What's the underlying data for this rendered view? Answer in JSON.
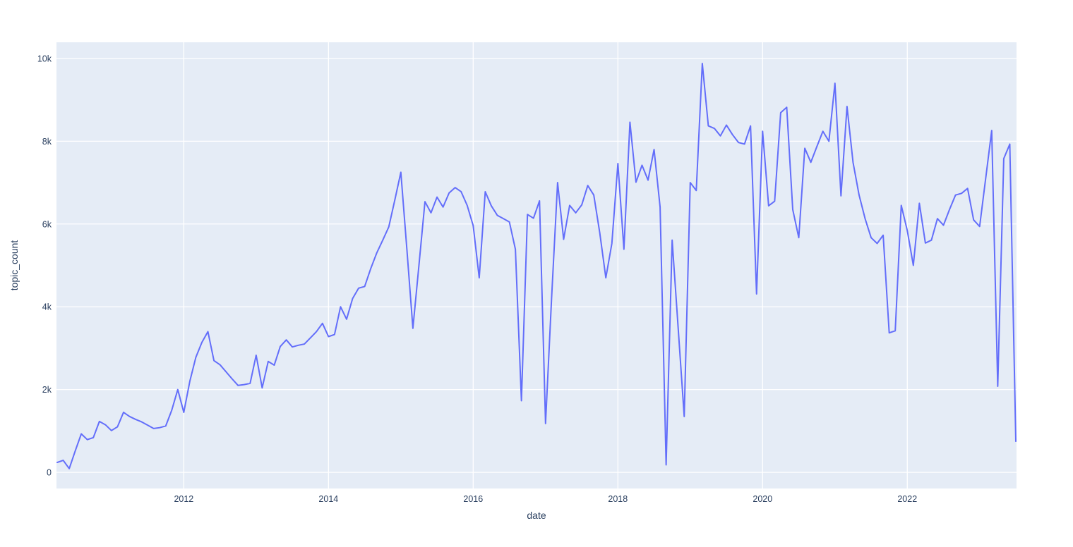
{
  "figure": {
    "title": "",
    "background_color": "#ffffff",
    "plot_background_color": "#e5ecf6",
    "gridline_color": "#ffffff",
    "line_color": "#636efa",
    "text_color": "#2a3f5f"
  },
  "chart_data": {
    "type": "line",
    "title": "",
    "xlabel": "date",
    "ylabel": "topic_count",
    "series_name": "topic_count",
    "legend": "none",
    "grid": true,
    "x_start_year": 2010,
    "x_start_month": 4,
    "x_freq": "monthly",
    "x_tick_labels": [
      "2012",
      "2014",
      "2016",
      "2018",
      "2020",
      "2022"
    ],
    "y_tick_labels": [
      "0",
      "2k",
      "4k",
      "6k",
      "8k",
      "10k"
    ],
    "y_tick_values": [
      0,
      2000,
      4000,
      6000,
      8000,
      10000
    ],
    "ylim": [
      -390,
      10390
    ],
    "values": [
      240,
      290,
      90,
      520,
      930,
      790,
      840,
      1230,
      1150,
      1010,
      1100,
      1450,
      1350,
      1280,
      1220,
      1140,
      1060,
      1080,
      1120,
      1500,
      2000,
      1450,
      2200,
      2780,
      3140,
      3400,
      2700,
      2600,
      2430,
      2260,
      2100,
      2120,
      2150,
      2830,
      2040,
      2680,
      2590,
      3040,
      3200,
      3030,
      3070,
      3100,
      3250,
      3400,
      3600,
      3280,
      3330,
      4000,
      3700,
      4200,
      4450,
      4490,
      4920,
      5300,
      5610,
      5930,
      6580,
      7250,
      5390,
      3480,
      5000,
      6540,
      6270,
      6650,
      6410,
      6750,
      6880,
      6780,
      6450,
      5960,
      4700,
      6780,
      6440,
      6210,
      6130,
      6050,
      5390,
      1730,
      6230,
      6140,
      6560,
      1180,
      4200,
      7000,
      5630,
      6450,
      6270,
      6460,
      6930,
      6700,
      5780,
      4700,
      5530,
      7460,
      5390,
      8460,
      7010,
      7420,
      7060,
      7800,
      6410,
      180,
      5610,
      3480,
      1350,
      7000,
      6810,
      9880,
      8370,
      8310,
      8130,
      8390,
      8160,
      7970,
      7930,
      8370,
      4310,
      8240,
      6440,
      6550,
      8690,
      8820,
      6350,
      5670,
      7830,
      7490,
      7870,
      8240,
      8000,
      9400,
      6680,
      8840,
      7490,
      6700,
      6130,
      5670,
      5530,
      5730,
      3370,
      3420,
      6450,
      5840,
      5000,
      6500,
      5540,
      5610,
      6130,
      5970,
      6350,
      6700,
      6740,
      6860,
      6100,
      5940,
      7100,
      8260,
      2080,
      7580,
      7930,
      750
    ]
  }
}
